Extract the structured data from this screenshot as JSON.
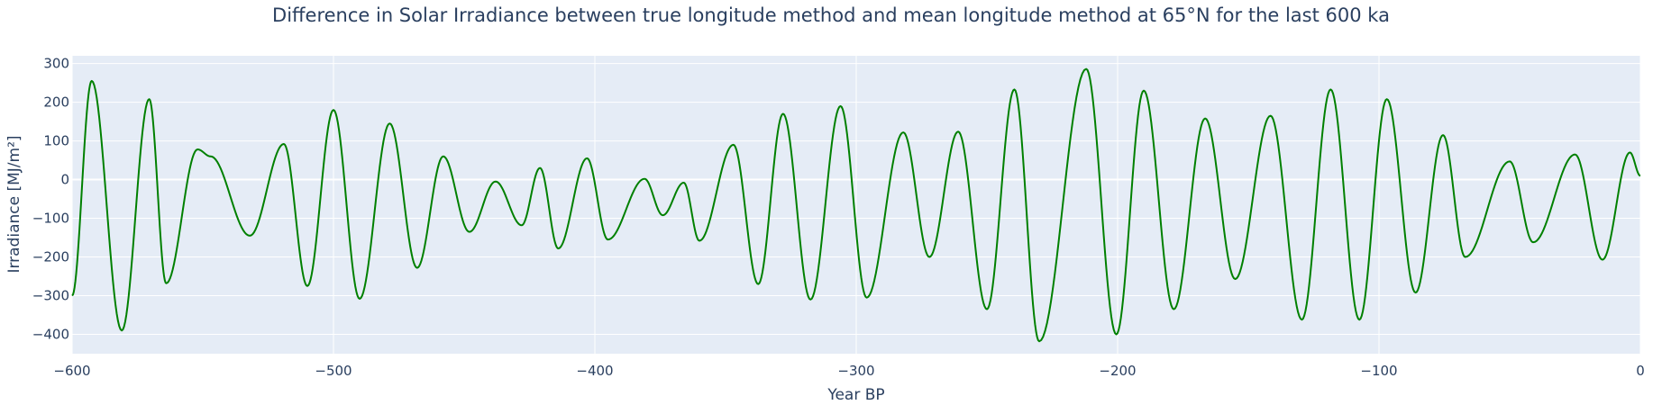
{
  "chart_data": {
    "type": "line",
    "title": "Difference in Solar Irradiance between true longitude method and mean longitude method at 65°N for the last 600 ka",
    "xlabel": "Year BP",
    "ylabel": "Irradiance [MJ/m²]",
    "xlim": [
      -600,
      0
    ],
    "ylim": [
      -450,
      320
    ],
    "xticks": [
      -600,
      -500,
      -400,
      -300,
      -200,
      -100,
      0
    ],
    "xtick_labels": [
      "−600",
      "−500",
      "−400",
      "−300",
      "−200",
      "−100",
      "0"
    ],
    "yticks": [
      -400,
      -300,
      -200,
      -100,
      0,
      100,
      200,
      300
    ],
    "ytick_labels": [
      "−400",
      "−300",
      "−200",
      "−100",
      "0",
      "100",
      "200",
      "300"
    ],
    "grid": true,
    "legend": "none",
    "colors": {
      "line": "#008000",
      "plot_bg": "#e5ecf6",
      "text": "#2a3f5f"
    },
    "series": [
      {
        "x": [
          -600,
          -592.5,
          -581,
          -570.5,
          -564,
          -552,
          -547,
          -532,
          -519,
          -510,
          -500,
          -490,
          -478.5,
          -468,
          -458,
          -448,
          -438,
          -428,
          -421,
          -414,
          -403,
          -395,
          -381,
          -374,
          -366,
          -360,
          -347,
          -337.5,
          -328,
          -317.5,
          -306,
          -296,
          -282,
          -272,
          -261,
          -250,
          -239.5,
          -230,
          -212,
          -200.5,
          -190,
          -178.5,
          -166.5,
          -155,
          -141.5,
          -129.5,
          -118.5,
          -107.5,
          -97,
          -86,
          -75.5,
          -67,
          -50,
          -41,
          -25,
          -14.5,
          -4,
          0
        ],
        "y": [
          -300,
          255,
          -390,
          208,
          -268,
          78,
          60,
          -145,
          92,
          -275,
          180,
          -308,
          145,
          -228,
          60,
          -135,
          -5,
          -118,
          30,
          -178,
          55,
          -155,
          2,
          -92,
          -8,
          -158,
          90,
          -270,
          170,
          -310,
          190,
          -305,
          122,
          -200,
          124,
          -335,
          233,
          -418,
          286,
          -400,
          230,
          -335,
          158,
          -257,
          165,
          -362,
          233,
          -362,
          208,
          -292,
          115,
          -200,
          47,
          -162,
          65,
          -207,
          70,
          10
        ]
      }
    ]
  }
}
